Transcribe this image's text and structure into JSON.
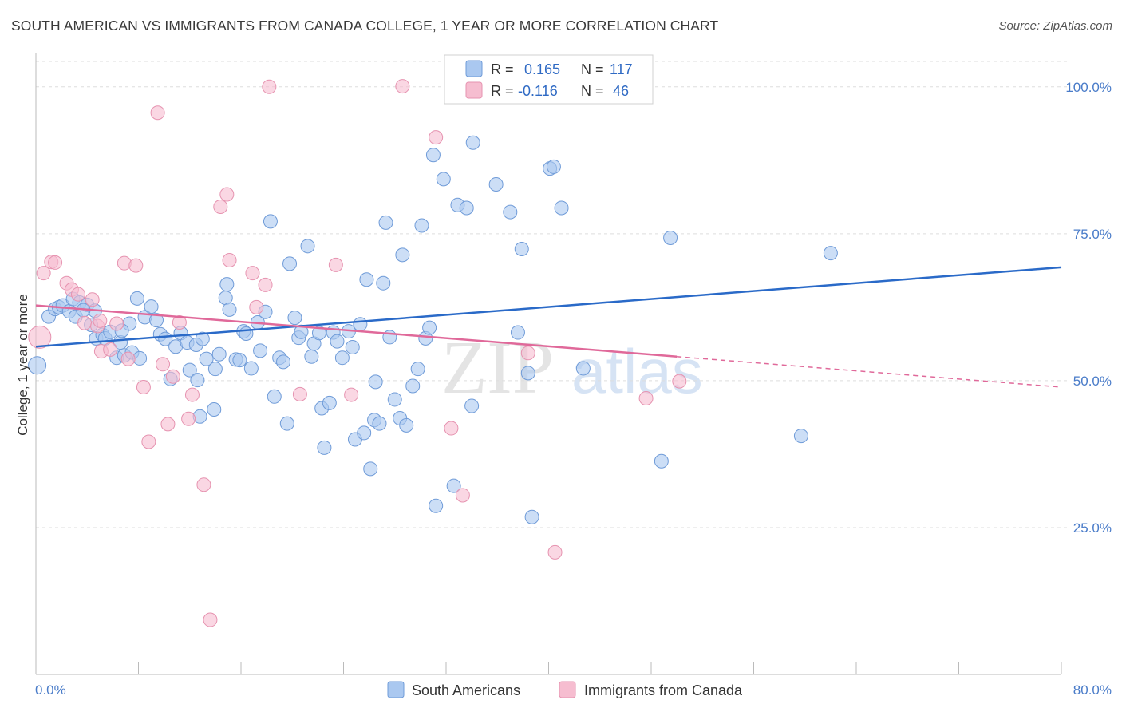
{
  "title": "SOUTH AMERICAN VS IMMIGRANTS FROM CANADA COLLEGE, 1 YEAR OR MORE CORRELATION CHART",
  "source": "Source: ZipAtlas.com",
  "watermark": {
    "zip": "ZIP",
    "atlas": "atlas"
  },
  "colors": {
    "blue_fill": "#aac8f0",
    "blue_stroke": "#6f9bd8",
    "blue_line": "#2a6ac8",
    "pink_fill": "#f6bdd0",
    "pink_stroke": "#e693b0",
    "pink_line": "#e0699a",
    "tick_text": "#4a7cc9",
    "grid": "#dddddd"
  },
  "stats_legend": [
    {
      "r_label": "R =",
      "r_value": "0.165",
      "n_label": "N =",
      "n_value": "117",
      "color": "blue"
    },
    {
      "r_label": "R =",
      "r_value": "-0.116",
      "n_label": "N =",
      "n_value": "46",
      "color": "pink"
    }
  ],
  "chart_data": {
    "type": "scatter",
    "title": "SOUTH AMERICAN VS IMMIGRANTS FROM CANADA COLLEGE, 1 YEAR OR MORE CORRELATION CHART",
    "xlabel": "",
    "ylabel": "College, 1 year or more",
    "xlim": [
      0,
      80
    ],
    "ylim": [
      0,
      105
    ],
    "x_tick_labels": [
      "0.0%",
      "80.0%"
    ],
    "y_ticks": [
      25,
      50,
      75,
      100
    ],
    "y_tick_labels": [
      "25.0%",
      "50.0%",
      "75.0%",
      "100.0%"
    ],
    "grid": true,
    "legend_position": "bottom",
    "series": [
      {
        "name": "South Americans",
        "color": "blue",
        "trend": {
          "x": [
            0,
            80
          ],
          "y": [
            55.8,
            69.3
          ]
        },
        "points": [
          [
            0.1,
            52.6
          ],
          [
            1.0,
            60.9
          ],
          [
            1.5,
            62.2
          ],
          [
            1.8,
            62.5
          ],
          [
            2.1,
            62.8
          ],
          [
            2.6,
            61.8
          ],
          [
            2.9,
            63.9
          ],
          [
            3.1,
            60.9
          ],
          [
            3.4,
            63.3
          ],
          [
            4.0,
            62.9
          ],
          [
            4.3,
            59.5
          ],
          [
            4.6,
            61.9
          ],
          [
            4.7,
            57.2
          ],
          [
            5.2,
            57.8
          ],
          [
            5.4,
            57.2
          ],
          [
            5.8,
            58.3
          ],
          [
            6.3,
            53.9
          ],
          [
            6.6,
            56.5
          ],
          [
            6.9,
            54.3
          ],
          [
            7.3,
            59.7
          ],
          [
            7.5,
            54.8
          ],
          [
            7.9,
            64.0
          ],
          [
            8.1,
            53.8
          ],
          [
            8.5,
            60.8
          ],
          [
            9.0,
            62.6
          ],
          [
            9.4,
            60.3
          ],
          [
            9.7,
            57.9
          ],
          [
            10.1,
            57.1
          ],
          [
            10.5,
            50.3
          ],
          [
            10.9,
            55.8
          ],
          [
            11.3,
            58.1
          ],
          [
            11.8,
            56.5
          ],
          [
            12.0,
            51.8
          ],
          [
            12.5,
            56.1
          ],
          [
            12.6,
            50.1
          ],
          [
            13.0,
            57.1
          ],
          [
            13.3,
            53.7
          ],
          [
            13.9,
            45.1
          ],
          [
            14.0,
            52.0
          ],
          [
            14.3,
            54.5
          ],
          [
            14.8,
            64.1
          ],
          [
            14.9,
            66.4
          ],
          [
            15.1,
            62.1
          ],
          [
            15.6,
            53.6
          ],
          [
            15.9,
            53.5
          ],
          [
            16.2,
            58.4
          ],
          [
            16.4,
            58.0
          ],
          [
            16.8,
            52.1
          ],
          [
            17.3,
            59.9
          ],
          [
            17.5,
            55.1
          ],
          [
            17.9,
            61.7
          ],
          [
            18.3,
            77.1
          ],
          [
            18.6,
            47.3
          ],
          [
            19.0,
            53.9
          ],
          [
            19.3,
            53.2
          ],
          [
            19.6,
            42.7
          ],
          [
            19.8,
            69.9
          ],
          [
            20.2,
            60.7
          ],
          [
            20.5,
            57.3
          ],
          [
            20.7,
            58.3
          ],
          [
            21.2,
            72.9
          ],
          [
            21.5,
            54.1
          ],
          [
            21.7,
            56.3
          ],
          [
            22.1,
            58.1
          ],
          [
            22.3,
            45.3
          ],
          [
            22.5,
            38.6
          ],
          [
            22.9,
            46.2
          ],
          [
            23.2,
            58.2
          ],
          [
            23.5,
            56.7
          ],
          [
            23.9,
            53.9
          ],
          [
            24.4,
            58.4
          ],
          [
            24.7,
            55.7
          ],
          [
            24.9,
            40.0
          ],
          [
            25.3,
            59.6
          ],
          [
            25.6,
            41.1
          ],
          [
            25.8,
            67.2
          ],
          [
            26.4,
            43.3
          ],
          [
            26.5,
            49.8
          ],
          [
            26.8,
            42.7
          ],
          [
            27.1,
            66.6
          ],
          [
            27.3,
            76.9
          ],
          [
            27.6,
            57.4
          ],
          [
            28.0,
            46.8
          ],
          [
            28.4,
            43.6
          ],
          [
            28.9,
            42.4
          ],
          [
            28.6,
            71.4
          ],
          [
            29.4,
            49.1
          ],
          [
            29.8,
            52.0
          ],
          [
            30.1,
            76.4
          ],
          [
            30.4,
            57.2
          ],
          [
            30.7,
            59.0
          ],
          [
            31.0,
            88.4
          ],
          [
            31.2,
            28.7
          ],
          [
            31.8,
            84.3
          ],
          [
            32.6,
            32.1
          ],
          [
            32.9,
            79.9
          ],
          [
            33.6,
            79.4
          ],
          [
            34.1,
            90.5
          ],
          [
            35.9,
            83.4
          ],
          [
            37.0,
            78.7
          ],
          [
            37.9,
            72.4
          ],
          [
            38.4,
            51.3
          ],
          [
            38.7,
            26.8
          ],
          [
            40.1,
            86.1
          ],
          [
            40.4,
            86.4
          ],
          [
            41.0,
            79.4
          ],
          [
            42.7,
            52.1
          ],
          [
            48.8,
            36.3
          ],
          [
            49.5,
            74.3
          ],
          [
            59.7,
            40.6
          ],
          [
            62.0,
            71.7
          ],
          [
            34.0,
            45.7
          ],
          [
            37.6,
            58.2
          ],
          [
            26.1,
            35.0
          ],
          [
            12.8,
            43.9
          ],
          [
            6.7,
            58.5
          ],
          [
            3.7,
            62.0
          ]
        ]
      },
      {
        "name": "Immigrants from Canada",
        "color": "pink",
        "trend": {
          "x": [
            0,
            50
          ],
          "y": [
            62.8,
            54.1
          ]
        },
        "trend_dashed": {
          "x": [
            50,
            80
          ],
          "y": [
            54.1,
            48.9
          ]
        },
        "points": [
          [
            0.3,
            57.4
          ],
          [
            0.6,
            68.3
          ],
          [
            1.2,
            70.2
          ],
          [
            1.5,
            70.1
          ],
          [
            2.4,
            66.6
          ],
          [
            2.8,
            65.5
          ],
          [
            3.3,
            64.7
          ],
          [
            3.8,
            59.8
          ],
          [
            4.4,
            63.8
          ],
          [
            4.8,
            59.3
          ],
          [
            5.1,
            55.0
          ],
          [
            5.8,
            55.3
          ],
          [
            6.3,
            59.7
          ],
          [
            6.9,
            70.0
          ],
          [
            7.2,
            53.7
          ],
          [
            7.8,
            69.6
          ],
          [
            8.4,
            48.9
          ],
          [
            8.8,
            39.6
          ],
          [
            9.5,
            95.6
          ],
          [
            9.9,
            52.8
          ],
          [
            10.3,
            42.6
          ],
          [
            10.7,
            50.7
          ],
          [
            11.2,
            59.9
          ],
          [
            11.9,
            43.5
          ],
          [
            12.2,
            47.6
          ],
          [
            13.1,
            32.3
          ],
          [
            13.6,
            9.3
          ],
          [
            14.4,
            79.6
          ],
          [
            14.9,
            81.7
          ],
          [
            15.1,
            70.5
          ],
          [
            16.9,
            68.3
          ],
          [
            17.2,
            62.5
          ],
          [
            17.9,
            66.3
          ],
          [
            18.2,
            100.0
          ],
          [
            20.6,
            47.7
          ],
          [
            23.4,
            69.7
          ],
          [
            24.6,
            47.6
          ],
          [
            28.6,
            100.1
          ],
          [
            31.2,
            91.4
          ],
          [
            32.4,
            41.9
          ],
          [
            33.3,
            30.5
          ],
          [
            38.4,
            54.7
          ],
          [
            40.5,
            20.8
          ],
          [
            47.6,
            47.0
          ],
          [
            50.2,
            49.9
          ],
          [
            5.0,
            60.2
          ]
        ]
      }
    ]
  },
  "bottom_legend": [
    {
      "label": "South Americans",
      "color": "blue"
    },
    {
      "label": "Immigrants from Canada",
      "color": "pink"
    }
  ]
}
